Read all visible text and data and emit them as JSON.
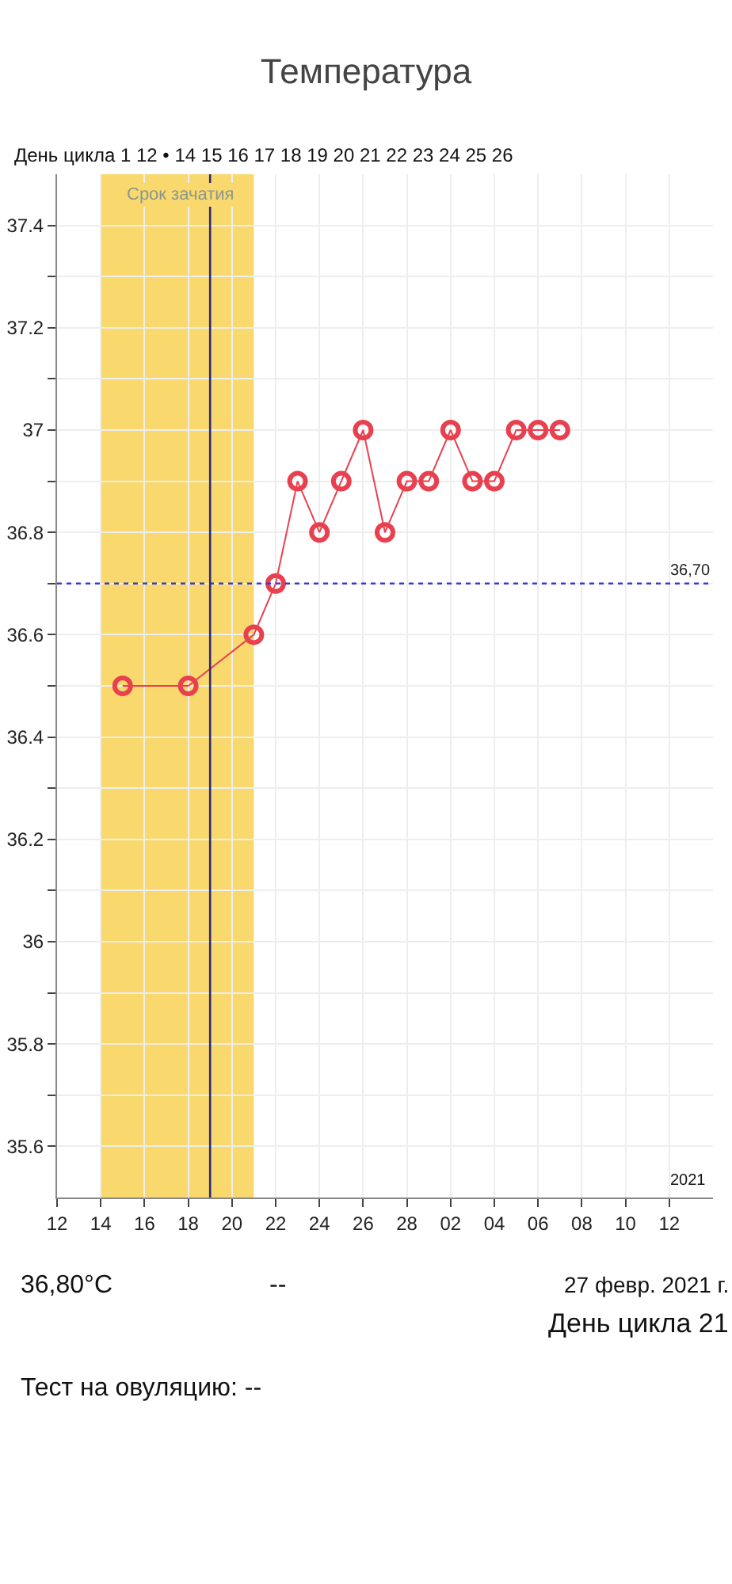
{
  "chart_data": {
    "type": "line",
    "title": "Температура",
    "x": [
      "2021-02-15",
      "2021-02-18",
      "2021-02-21",
      "2021-02-22",
      "2021-02-23",
      "2021-02-24",
      "2021-02-25",
      "2021-02-26",
      "2021-02-27",
      "2021-02-28",
      "2021-03-01",
      "2021-03-02",
      "2021-03-03",
      "2021-03-04",
      "2021-03-05",
      "2021-03-06",
      "2021-03-07"
    ],
    "series": [
      {
        "color": "#e8404f",
        "values": [
          36.5,
          36.5,
          36.6,
          36.7,
          36.9,
          36.8,
          36.9,
          37.0,
          36.8,
          36.9,
          36.9,
          37.0,
          36.9,
          36.9,
          37.0,
          37.0,
          37.0
        ]
      }
    ],
    "marker": "circle",
    "line_style": "solid",
    "grid": true,
    "legend": false,
    "xlim": [
      "2021-02-12",
      "2021-03-14"
    ],
    "xticks": [
      {
        "value": "2021-02-12",
        "label": "12"
      },
      {
        "value": "2021-02-14",
        "label": "14"
      },
      {
        "value": "2021-02-16",
        "label": "16"
      },
      {
        "value": "2021-02-18",
        "label": "18"
      },
      {
        "value": "2021-02-20",
        "label": "20"
      },
      {
        "value": "2021-02-22",
        "label": "22"
      },
      {
        "value": "2021-02-24",
        "label": "24"
      },
      {
        "value": "2021-02-26",
        "label": "26"
      },
      {
        "value": "2021-02-28",
        "label": "28"
      },
      {
        "value": "2021-03-02",
        "label": "02"
      },
      {
        "value": "2021-03-04",
        "label": "04"
      },
      {
        "value": "2021-03-06",
        "label": "06"
      },
      {
        "value": "2021-03-08",
        "label": "08"
      },
      {
        "value": "2021-03-10",
        "label": "10"
      },
      {
        "value": "2021-03-12",
        "label": "12"
      }
    ],
    "ylim": [
      35.5,
      37.5
    ],
    "yticks": [
      35.6,
      {
        "value": 35.7,
        "label": null
      },
      35.8,
      {
        "value": 35.9,
        "label": null
      },
      36,
      {
        "value": 36.1,
        "label": null
      },
      36.2,
      {
        "value": 36.3,
        "label": null
      },
      36.4,
      {
        "value": 36.5,
        "label": null
      },
      36.6,
      {
        "value": 36.7,
        "label": null
      },
      36.8,
      {
        "value": 36.9,
        "label": null
      },
      37,
      {
        "value": 37.1,
        "label": null
      },
      37.2,
      {
        "value": 37.3,
        "label": null
      },
      37.4
    ],
    "bands": [
      {
        "axis": "x",
        "from": "2021-02-14",
        "to": "2021-02-21",
        "label": "Срок зачатия",
        "color": "#f9d86e"
      }
    ],
    "ref_lines": [
      {
        "axis": "y",
        "value": 36.7,
        "label": "36,70",
        "color": "#3a3ad0",
        "line_style": "dotted"
      },
      {
        "axis": "x",
        "value": "2021-02-19",
        "label": null,
        "color": "#2a2a80",
        "line_style": "solid"
      }
    ],
    "annotations": [
      "День цикла 1 12 • 14 15 16 17 18 19 20 21 22 23 24 25 26",
      "2021",
      "36,80°C",
      "--",
      "27 февр. 2021 г.",
      "День цикла 21",
      "Тест на овуляцию: --"
    ]
  }
}
